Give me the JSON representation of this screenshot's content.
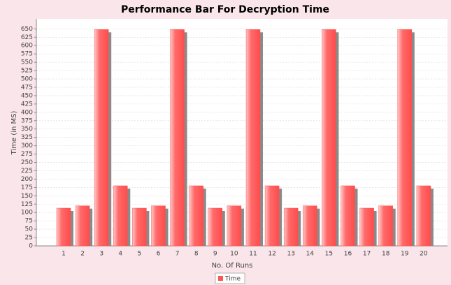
{
  "chart_data": {
    "type": "bar",
    "title": "Performance Bar For Decryption Time",
    "x_label": "No. Of Runs",
    "y_label": "Time (in MS)",
    "categories": [
      "1",
      "2",
      "3",
      "4",
      "5",
      "6",
      "7",
      "8",
      "9",
      "10",
      "11",
      "12",
      "13",
      "14",
      "15",
      "16",
      "17",
      "18",
      "19",
      "20"
    ],
    "series": [
      {
        "name": "Time",
        "color": "#ff5555",
        "values": [
          113,
          120,
          648,
          180,
          113,
          120,
          648,
          180,
          113,
          120,
          648,
          180,
          113,
          120,
          648,
          180,
          113,
          120,
          648,
          180
        ]
      }
    ],
    "ylim": [
      0,
      680
    ],
    "yticks": [
      0,
      25,
      50,
      75,
      100,
      125,
      150,
      175,
      200,
      225,
      250,
      275,
      300,
      325,
      350,
      375,
      400,
      425,
      450,
      475,
      500,
      525,
      550,
      575,
      600,
      625,
      650
    ],
    "grid": true,
    "legend": "bottom"
  }
}
